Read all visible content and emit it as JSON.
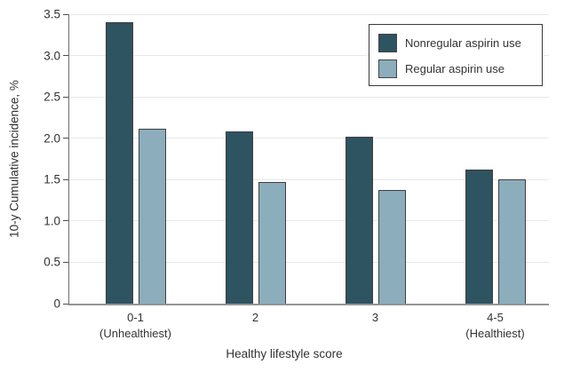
{
  "chart_data": {
    "type": "bar",
    "title": "",
    "xlabel": "Healthy lifestyle score",
    "ylabel": "10-y Cumulative incidence, %",
    "categories": [
      "0-1",
      "2",
      "3",
      "4-5"
    ],
    "category_sublabels": [
      "(Unhealthiest)",
      "",
      "",
      "(Healthiest)"
    ],
    "series": [
      {
        "name": "Nonregular aspirin use",
        "color": "#2e5361",
        "values": [
          3.4,
          2.08,
          2.02,
          1.62
        ]
      },
      {
        "name": "Regular aspirin use",
        "color": "#8badbc",
        "values": [
          2.12,
          1.47,
          1.37,
          1.5
        ]
      }
    ],
    "ylim": [
      0,
      3.5
    ],
    "ytick_step": 0.5,
    "ytick_labels": [
      "0",
      "0.5",
      "1.0",
      "1.5",
      "2.0",
      "2.5",
      "3.0",
      "3.5"
    ],
    "grid": true,
    "legend_position": "top-right"
  },
  "colors": {
    "nonregular_bar": "#2e5361",
    "regular_bar": "#8badbc",
    "grid_line": "#e8e8e8",
    "x_axis_line": "#949494",
    "y_axis_line": "#6e6e6e",
    "tick_mark": "#4d4d4d",
    "bar_border": "#3f3f3f",
    "legend_border": "#3a3a3a",
    "text": "#333333"
  }
}
